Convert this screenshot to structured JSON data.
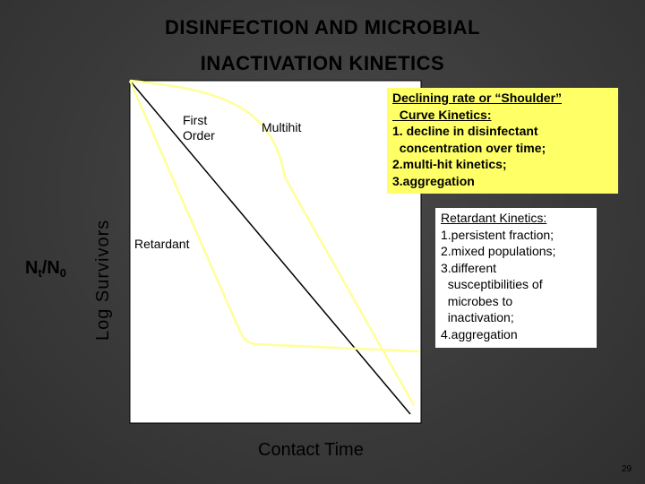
{
  "title": {
    "line1": "DISINFECTION AND MICROBIAL",
    "line2": "INACTIVATION KINETICS"
  },
  "axes": {
    "ylabel_log": "Log Survivors",
    "ylabel_ratio_main": "N",
    "ylabel_ratio_sub1": "t",
    "ylabel_ratio_mid": "/N",
    "ylabel_ratio_sub2": "0",
    "xlabel": "Contact Time"
  },
  "curve_labels": {
    "first_order_1": "First",
    "first_order_2": "Order",
    "multihit": "Multihit",
    "retardant": "Retardant"
  },
  "shoulder_box": {
    "lines": [
      "Declining rate or “Shoulder”",
      "  Curve Kinetics:",
      "1. decline in disinfectant",
      "  concentration over time;",
      "2.multi-hit kinetics;",
      "3.aggregation"
    ]
  },
  "retardant_box": {
    "lines": [
      "Retardant Kinetics:",
      "1.persistent fraction;",
      "2.mixed populations;",
      "3.different",
      "  susceptibilities of",
      "  microbes to",
      "  inactivation;",
      "4.aggregation"
    ]
  },
  "colors": {
    "plot_area": "#ffffff",
    "first_order_line": "#000000",
    "curve_lines": "#ffff99",
    "shoulder_box": "#ffff66",
    "retardant_box": "#ffffff"
  },
  "page_number": "29"
}
